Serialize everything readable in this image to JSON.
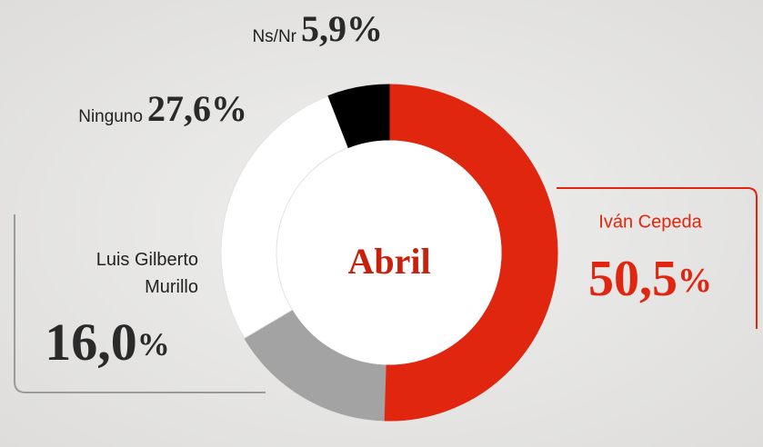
{
  "chart_data": {
    "type": "donut",
    "center_label": "Abril",
    "categories": [
      "Iván Cepeda",
      "Luis Gilberto Murillo",
      "Ninguno",
      "Ns/Nr"
    ],
    "values": [
      50.5,
      16.0,
      27.6,
      5.9
    ],
    "value_labels": [
      "50,5%",
      "16,0%",
      "27,6%",
      "5,9%"
    ],
    "colors": [
      "#e0260e",
      "#a3a3a3",
      "#ffffff",
      "#000000"
    ]
  }
}
